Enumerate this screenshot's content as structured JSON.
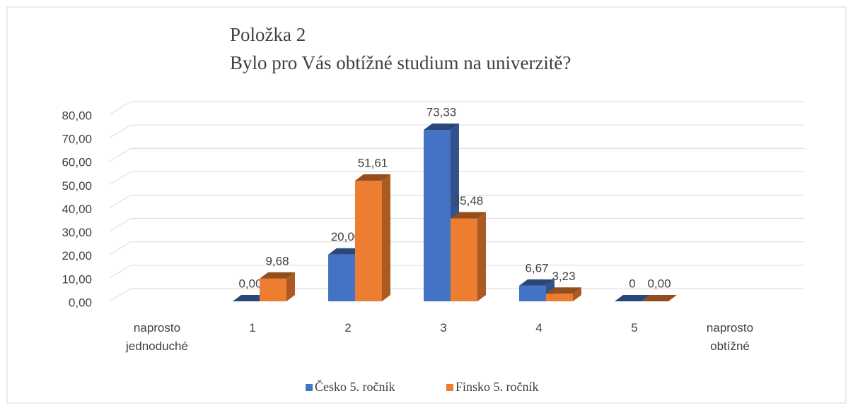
{
  "chart_data": {
    "type": "bar3d",
    "title": "Položka 2",
    "subtitle": "Bylo pro Vás obtížné studium na univerzitě?",
    "categories": [
      "naprosto jednoduché",
      "1",
      "2",
      "3",
      "4",
      "5",
      "naprosto obtížné"
    ],
    "series": [
      {
        "name": "Česko 5. ročník",
        "color": "#4472c4",
        "values": [
          null,
          0,
          20,
          73.33,
          6.67,
          0,
          null
        ],
        "value_labels": [
          null,
          "0,00",
          "20,00",
          "73,33",
          "6,67",
          "0",
          null
        ]
      },
      {
        "name": "Finsko 5. ročník",
        "color": "#ed7d31",
        "values": [
          null,
          9.68,
          51.61,
          35.48,
          3.23,
          0,
          null
        ],
        "value_labels": [
          null,
          "9,68",
          "51,61",
          "35,48",
          "3,23",
          "0,00",
          null
        ]
      }
    ],
    "ylim": [
      0,
      80
    ],
    "yticks": [
      {
        "value": 0,
        "label": "0,00"
      },
      {
        "value": 10,
        "label": "10,00"
      },
      {
        "value": 20,
        "label": "20,00"
      },
      {
        "value": 30,
        "label": "30,00"
      },
      {
        "value": 40,
        "label": "40,00"
      },
      {
        "value": 50,
        "label": "50,00"
      },
      {
        "value": 60,
        "label": "60,00"
      },
      {
        "value": 70,
        "label": "70,00"
      },
      {
        "value": 80,
        "label": "80,00"
      }
    ],
    "grid": true,
    "legend": "bottom"
  }
}
